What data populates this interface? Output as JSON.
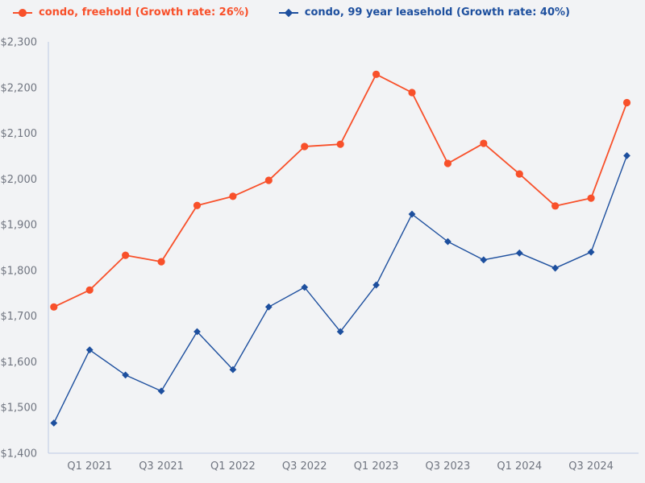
{
  "legend": {
    "items": [
      {
        "label": "condo, freehold (Growth rate: 26%)",
        "color": "#f8502a",
        "marker": "circle"
      },
      {
        "label": "condo, 99 year leasehold (Growth rate: 40%)",
        "color": "#1d4f9e",
        "marker": "diamond"
      }
    ]
  },
  "chart_data": {
    "type": "line",
    "title": "",
    "xlabel": "",
    "ylabel": "",
    "grid": false,
    "legend_position": "top-left",
    "background_color": "#f2f3f5",
    "axis_color": "#bcc8e4",
    "tick_label_color": "#707580",
    "ylim": [
      1400,
      2300
    ],
    "y_tick_step": 100,
    "y_tick_labels": [
      "$1,400",
      "$1,500",
      "$1,600",
      "$1,700",
      "$1,800",
      "$1,900",
      "$2,000",
      "$2,100",
      "$2,200",
      "$2,300"
    ],
    "categories": [
      "Q4 2020",
      "Q1 2021",
      "Q2 2021",
      "Q3 2021",
      "Q4 2021",
      "Q1 2022",
      "Q2 2022",
      "Q3 2022",
      "Q4 2022",
      "Q1 2023",
      "Q2 2023",
      "Q3 2023",
      "Q4 2023",
      "Q1 2024",
      "Q2 2024",
      "Q3 2024",
      "Q4 2024"
    ],
    "x_tick_indices": [
      1,
      3,
      5,
      7,
      9,
      11,
      13,
      15
    ],
    "x_tick_labels": [
      "Q1 2021",
      "Q3 2021",
      "Q1 2022",
      "Q3 2022",
      "Q1 2023",
      "Q3 2023",
      "Q1 2024",
      "Q3 2024"
    ],
    "series": [
      {
        "name": "condo, freehold",
        "growth_rate": "26%",
        "color": "#f8502a",
        "marker": "circle",
        "values": [
          1720,
          1757,
          1833,
          1819,
          1942,
          1962,
          1997,
          2071,
          2076,
          2229,
          2189,
          2034,
          2078,
          2011,
          1941,
          1958,
          2167
        ]
      },
      {
        "name": "condo, 99 year leasehold",
        "growth_rate": "40%",
        "color": "#1d4f9e",
        "marker": "diamond",
        "values": [
          1466,
          1626,
          1571,
          1536,
          1666,
          1583,
          1720,
          1763,
          1666,
          1768,
          1923,
          1863,
          1823,
          1838,
          1805,
          1840,
          2051
        ]
      }
    ]
  }
}
